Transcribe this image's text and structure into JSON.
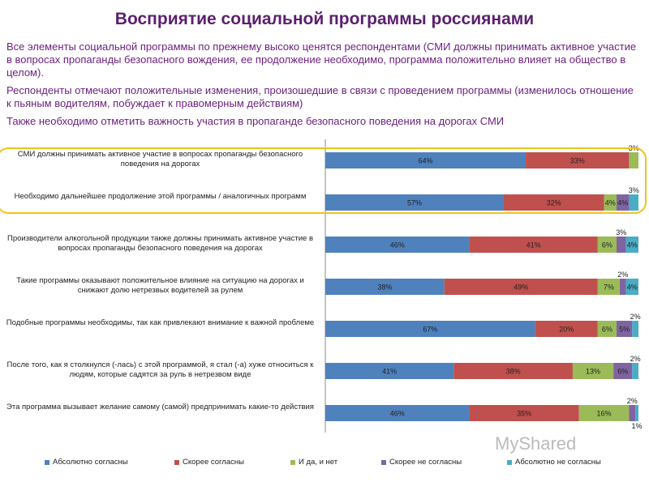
{
  "title": "Восприятие социальной программы россиянами",
  "paragraphs": [
    "Все элементы социальной программы по прежнему высоко ценятся респондентами (СМИ должны принимать активное участие в вопросах пропаганды безопасного вождения, ее продолжение необходимо, программа положительно влияет на общество в целом).",
    "Респонденты отмечают положительные изменения, произошедшие в связи с проведением программы (изменилось отношение к пьяным водителям, побуждает к правомерным действиям)",
    "Также необходимо отметить важность участия в пропаганде безопасного поведения на дорогах СМИ"
  ],
  "watermark": "MyShared",
  "chart_data": {
    "type": "bar",
    "orientation": "horizontal",
    "stacked": "100%",
    "categories": [
      "СМИ должны принимать активное участие в вопросах пропаганды безопасного поведения на дорогах",
      "Необходимо дальнейшее продолжение этой программы / аналогичных программ",
      "Производители алкогольной продукции также должны принимать активное участие в вопросах пропаганды безопасного поведения на дорогах",
      "Такие программы оказывают положительное влияние на ситуацию на дорогах и снижают долю нетрезвых водителей за рулем",
      "Подобные программы необходимы, так как привлекают внимание к важной проблеме",
      "После того, как я столкнулся (-лась) с этой программой, я стал (-а) хуже относиться к людям, которые садятся за руль в нетрезвом виде",
      "Эта программа вызывает желание самому (самой) предпринимать какие-то действия"
    ],
    "series": [
      {
        "name": "Абсолютно согласны",
        "color": "#4f81bd",
        "values": [
          64,
          57,
          46,
          38,
          67,
          41,
          46
        ]
      },
      {
        "name": "Скорее согласны",
        "color": "#c0504d",
        "values": [
          33,
          32,
          41,
          49,
          20,
          38,
          35
        ]
      },
      {
        "name": "И да, и нет",
        "color": "#9bbb59",
        "values": [
          3,
          4,
          6,
          7,
          6,
          13,
          16
        ]
      },
      {
        "name": "Скорее не согласны",
        "color": "#8064a2",
        "values": [
          0,
          4,
          3,
          2,
          5,
          6,
          2
        ]
      },
      {
        "name": "Абсолютно не согласны",
        "color": "#4bacc6",
        "values": [
          0,
          3,
          4,
          4,
          2,
          2,
          1
        ]
      }
    ],
    "legend": "bottom",
    "highlighted_rows": [
      0,
      1
    ]
  }
}
